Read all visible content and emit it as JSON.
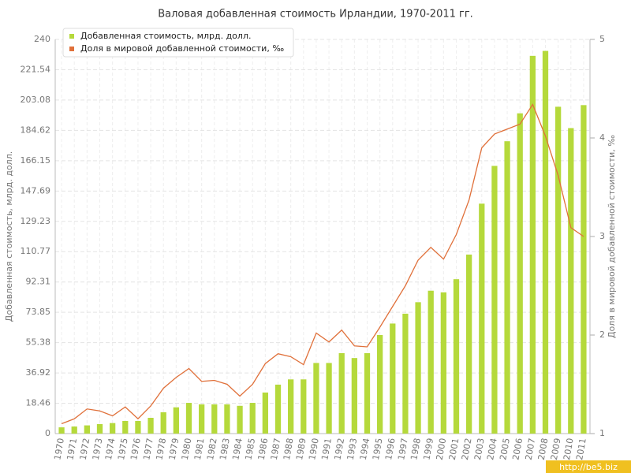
{
  "chart_data": {
    "type": "bar-line",
    "title": "Валовая добавленная стоимость Ирландии, 1970-2011 гг.",
    "y_label": "Добавленная стоимость, млрд. долл.",
    "y2_label": "Доля в мировой добавленной стоимости, ‰",
    "watermark": "http://be5.biz",
    "categories": [
      "1970",
      "1971",
      "1972",
      "1973",
      "1974",
      "1975",
      "1976",
      "1977",
      "1978",
      "1979",
      "1980",
      "1981",
      "1982",
      "1983",
      "1984",
      "1985",
      "1986",
      "1987",
      "1988",
      "1989",
      "1990",
      "1991",
      "1992",
      "1993",
      "1994",
      "1995",
      "1996",
      "1997",
      "1998",
      "1999",
      "2000",
      "2001",
      "2002",
      "2003",
      "2004",
      "2005",
      "2006",
      "2007",
      "2008",
      "2009",
      "2010",
      "2011"
    ],
    "series": [
      {
        "name": "Добавленная стоимость, млрд. долл.",
        "color": "#b5d93b",
        "kind": "bar",
        "values": [
          3.8,
          4.3,
          5,
          5.8,
          6.4,
          7.7,
          7.7,
          9.6,
          13,
          16,
          18.7,
          17.8,
          17.8,
          17.8,
          16.9,
          18.7,
          25,
          29.8,
          33,
          33,
          43,
          43,
          49,
          46,
          49,
          60,
          67,
          73,
          80,
          87,
          86,
          94,
          109,
          140,
          163,
          178,
          195,
          230,
          233,
          199,
          186,
          200
        ]
      },
      {
        "name": "Доля в мировой добавленной стоимости, ‰",
        "color": "#e0703a",
        "kind": "line",
        "axis": "y2",
        "values": [
          1.1,
          1.15,
          1.25,
          1.23,
          1.18,
          1.27,
          1.15,
          1.28,
          1.46,
          1.57,
          1.66,
          1.53,
          1.54,
          1.5,
          1.38,
          1.5,
          1.71,
          1.81,
          1.78,
          1.7,
          2.02,
          1.93,
          2.05,
          1.89,
          1.88,
          2.08,
          2.29,
          2.5,
          2.76,
          2.89,
          2.77,
          3.02,
          3.37,
          3.9,
          4.04,
          4.09,
          4.14,
          4.34,
          4.02,
          3.62,
          3.09,
          3
        ]
      }
    ],
    "ylim": [
      0,
      240
    ],
    "yticks": [
      0,
      18.46,
      36.92,
      55.38,
      73.85,
      92.31,
      110.77,
      129.23,
      147.69,
      166.15,
      184.62,
      203.08,
      221.54,
      240
    ],
    "y2lim": [
      1,
      5
    ],
    "y2ticks": [
      1,
      2,
      3,
      4,
      5
    ],
    "grid": true,
    "legend": "top-left"
  }
}
